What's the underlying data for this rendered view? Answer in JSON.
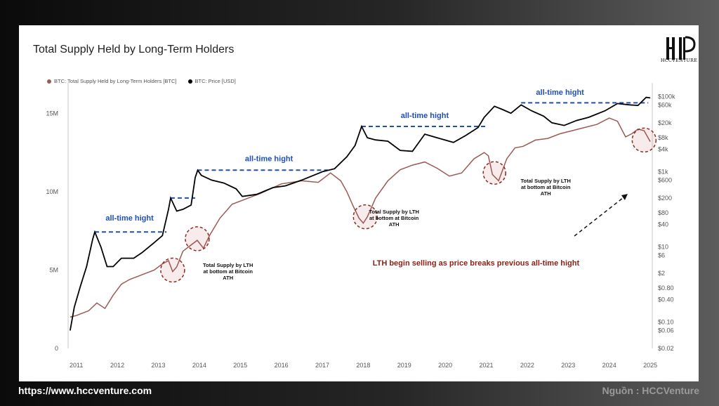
{
  "title": "Total Supply Held by Long-Term Holders",
  "logo_caption": "HCCVENTURE",
  "footer": {
    "url": "https://www.hccventure.com",
    "source": "Nguồn : HCCVenture"
  },
  "colors": {
    "supply": "#9c5a55",
    "price": "#000000",
    "ath_line": "#1f4fb8",
    "ath_text": "#1f4fb8",
    "annotation": "#8b1f16",
    "circle": "#8b2a22"
  },
  "chart_data": {
    "type": "line",
    "title": "Total Supply Held by Long-Term Holders",
    "x_ticks": [
      "2011",
      "2012",
      "2013",
      "2014",
      "2015",
      "2016",
      "2017",
      "2018",
      "2019",
      "2020",
      "2021",
      "2022",
      "2023",
      "2024",
      "2025"
    ],
    "x_range": [
      2010.8,
      2025.05
    ],
    "y_left": {
      "ticks": [
        "0",
        "5M",
        "10M",
        "15M"
      ],
      "tick_values": [
        0,
        5000000,
        10000000,
        15000000
      ],
      "range": [
        0,
        16500000
      ]
    },
    "y_right": {
      "scale": "log",
      "ticks": [
        "$0.02",
        "$0.06",
        "$0.10",
        "$0.40",
        "$0.80",
        "$2",
        "$6",
        "$10",
        "$40",
        "$80",
        "$200",
        "$600",
        "$1k",
        "$4k",
        "$8k",
        "$20k",
        "$60k",
        "$100k"
      ],
      "tick_values": [
        0.02,
        0.06,
        0.1,
        0.4,
        0.8,
        2,
        6,
        10,
        40,
        80,
        200,
        600,
        1000,
        4000,
        8000,
        20000,
        60000,
        100000
      ],
      "range": [
        0.02,
        150000
      ]
    },
    "grid": false,
    "legend_position": "top-left",
    "series": [
      {
        "name": "BTC: Total Supply Held by Long-Term Holders [BTC]",
        "axis": "left",
        "x": [
          2010.85,
          2011.0,
          2011.3,
          2011.5,
          2011.7,
          2011.9,
          2012.1,
          2012.3,
          2012.5,
          2012.7,
          2012.9,
          2013.1,
          2013.25,
          2013.35,
          2013.45,
          2013.6,
          2013.75,
          2013.95,
          2014.1,
          2014.25,
          2014.5,
          2014.8,
          2015.1,
          2015.5,
          2016.0,
          2016.5,
          2016.9,
          2017.2,
          2017.45,
          2017.6,
          2017.75,
          2017.9,
          2018.0,
          2018.1,
          2018.3,
          2018.6,
          2018.9,
          2019.2,
          2019.5,
          2019.8,
          2020.1,
          2020.4,
          2020.7,
          2020.95,
          2021.05,
          2021.15,
          2021.3,
          2021.5,
          2021.7,
          2021.9,
          2022.2,
          2022.5,
          2022.8,
          2023.1,
          2023.4,
          2023.7,
          2024.0,
          2024.2,
          2024.4,
          2024.55,
          2024.7,
          2024.85,
          2025.0
        ],
        "y": [
          2000000,
          2100000,
          2400000,
          2900000,
          2550000,
          3400000,
          4100000,
          4400000,
          4600000,
          4800000,
          5000000,
          5400000,
          5600000,
          4900000,
          5200000,
          6200000,
          6500000,
          6900000,
          6400000,
          7200000,
          8300000,
          9200000,
          9500000,
          9900000,
          10500000,
          10700000,
          10600000,
          11200000,
          10700000,
          10000000,
          9100000,
          8300000,
          8000000,
          8400000,
          9600000,
          10700000,
          11400000,
          11700000,
          11900000,
          11500000,
          11000000,
          11200000,
          12100000,
          12500000,
          12300000,
          11100000,
          10700000,
          12100000,
          12800000,
          12900000,
          13300000,
          13400000,
          13700000,
          13900000,
          14100000,
          14300000,
          14700000,
          14500000,
          13500000,
          13700000,
          14000000,
          13900000,
          13200000
        ]
      },
      {
        "name": "BTC: Price [USD]",
        "axis": "right",
        "x": [
          2010.85,
          2010.95,
          2011.1,
          2011.25,
          2011.4,
          2011.45,
          2011.6,
          2011.75,
          2011.9,
          2012.1,
          2012.4,
          2012.6,
          2012.9,
          2013.1,
          2013.25,
          2013.3,
          2013.45,
          2013.6,
          2013.8,
          2013.9,
          2013.96,
          2014.05,
          2014.3,
          2014.6,
          2014.9,
          2015.05,
          2015.4,
          2015.8,
          2016.1,
          2016.5,
          2016.9,
          2017.0,
          2017.3,
          2017.6,
          2017.8,
          2017.96,
          2018.1,
          2018.3,
          2018.6,
          2018.9,
          2019.2,
          2019.5,
          2019.8,
          2020.2,
          2020.5,
          2020.8,
          2020.95,
          2021.2,
          2021.4,
          2021.6,
          2021.85,
          2022.1,
          2022.4,
          2022.6,
          2022.9,
          2023.2,
          2023.5,
          2023.9,
          2024.2,
          2024.5,
          2024.7,
          2024.9,
          2025.0
        ],
        "y": [
          0.06,
          0.25,
          0.9,
          3,
          16,
          25,
          10,
          3,
          3,
          5,
          5,
          7,
          13,
          20,
          100,
          200,
          90,
          100,
          130,
          700,
          1100,
          800,
          600,
          500,
          350,
          220,
          250,
          380,
          420,
          600,
          900,
          1000,
          1200,
          2500,
          5000,
          16000,
          8000,
          7000,
          6500,
          3700,
          3500,
          10000,
          8000,
          6000,
          9200,
          15000,
          28000,
          55000,
          45000,
          36000,
          60000,
          42000,
          30000,
          20000,
          17000,
          23000,
          28000,
          42000,
          65000,
          60000,
          58000,
          95000,
          92000
        ]
      }
    ],
    "ath_labels": [
      "all-time hight",
      "all-time hight",
      "all-time hight",
      "all-time hight"
    ],
    "annotations": {
      "lth_bottom_1": [
        "Total Supply by LTH",
        "at bottom at Bitcoin",
        "ATH"
      ],
      "lth_bottom_2": [
        "Total Supply by LTH",
        "at bottom at Bitcoin",
        "ATH"
      ],
      "lth_bottom_3": [
        "Total Supply by LTH",
        "at bottom at Bitcoin",
        "ATH"
      ],
      "main": "LTH begin selling as price breaks previous all-time hight"
    }
  }
}
